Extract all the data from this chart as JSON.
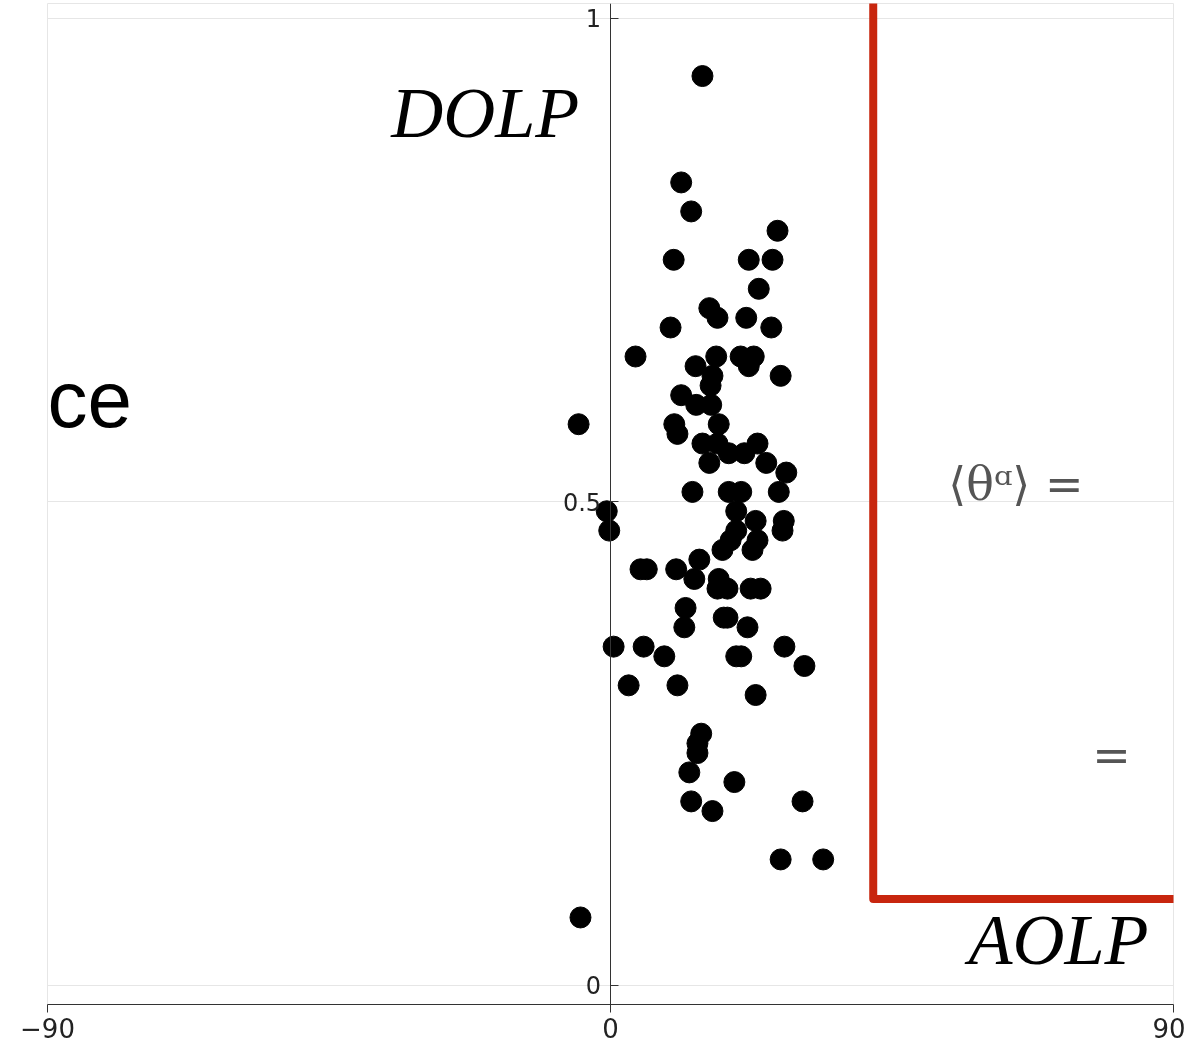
{
  "chart_data": {
    "type": "scatter",
    "xlabel": "AOLP",
    "ylabel": "DOLP",
    "xlim": [
      -90,
      90
    ],
    "xticks": [
      {
        "value": -90,
        "label": "−90"
      },
      0,
      90
    ],
    "ylim": [
      -0.02,
      1.015
    ],
    "yticks": [
      0,
      0.5,
      1
    ],
    "grid": "y",
    "marker": "circle",
    "annotations": [
      "ce",
      "⟨θᵅ⟩ =",
      "="
    ],
    "series": [
      {
        "color": "#000000",
        "x": [
          14.7,
          11.3,
          12.9,
          26.7,
          10.1,
          22.1,
          25.9,
          23.7,
          15.8,
          17.1,
          21.7,
          25.7,
          9.6,
          4.0,
          13.6,
          16.9,
          20.8,
          22.9,
          22.1,
          16.3,
          27.2,
          16.0,
          11.3,
          13.7,
          16.1,
          10.2,
          -5.1,
          10.7,
          17.3,
          17.1,
          23.5,
          14.7,
          18.9,
          21.4,
          15.8,
          24.9,
          28.1,
          13.1,
          18.9,
          20.9,
          26.9,
          20.1,
          23.2,
          27.7,
          -0.6,
          -0.2,
          27.5,
          20.1,
          19.2,
          17.9,
          23.5,
          22.7,
          4.8,
          5.8,
          14.2,
          10.5,
          13.4,
          17.3,
          18.7,
          17.1,
          24.0,
          22.4,
          12.0,
          11.8,
          18.7,
          18.1,
          21.9,
          0.5,
          5.3,
          8.6,
          2.9,
          10.7,
          27.8,
          20.9,
          20.1,
          31.0,
          23.2,
          14.5,
          13.9,
          13.9,
          12.6,
          19.8,
          12.9,
          16.3,
          30.7,
          27.2,
          34.0,
          -4.8
        ],
        "values": [
          0.94,
          0.83,
          0.8,
          0.78,
          0.75,
          0.75,
          0.75,
          0.72,
          0.7,
          0.69,
          0.69,
          0.68,
          0.68,
          0.65,
          0.64,
          0.65,
          0.65,
          0.65,
          0.64,
          0.63,
          0.63,
          0.62,
          0.61,
          0.6,
          0.6,
          0.58,
          0.58,
          0.57,
          0.58,
          0.56,
          0.56,
          0.56,
          0.55,
          0.55,
          0.54,
          0.54,
          0.53,
          0.51,
          0.51,
          0.51,
          0.51,
          0.49,
          0.48,
          0.48,
          0.49,
          0.47,
          0.47,
          0.47,
          0.46,
          0.45,
          0.46,
          0.45,
          0.43,
          0.43,
          0.44,
          0.43,
          0.42,
          0.42,
          0.41,
          0.41,
          0.41,
          0.41,
          0.39,
          0.37,
          0.38,
          0.38,
          0.37,
          0.35,
          0.35,
          0.34,
          0.31,
          0.31,
          0.35,
          0.34,
          0.34,
          0.33,
          0.3,
          0.26,
          0.25,
          0.24,
          0.22,
          0.21,
          0.19,
          0.18,
          0.19,
          0.13,
          0.13,
          0.07
        ]
      }
    ]
  }
}
